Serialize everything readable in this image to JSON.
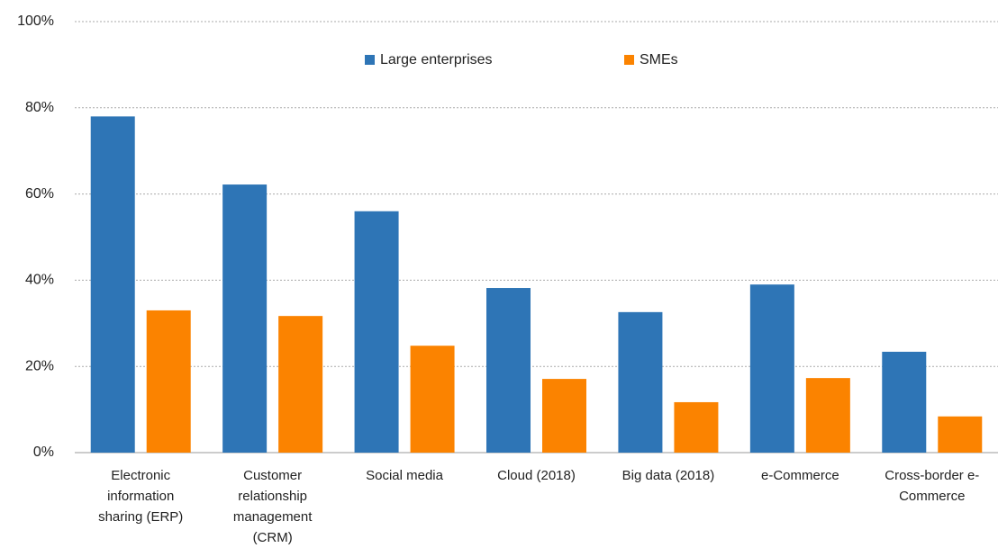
{
  "chart_data": {
    "type": "bar",
    "categories": [
      "Electronic information sharing (ERP)",
      "Customer relationship management (CRM)",
      "Social media",
      "Cloud (2018)",
      "Big data (2018)",
      "e-Commerce",
      "Cross-border e-Commerce"
    ],
    "series": [
      {
        "name": "Large enterprises",
        "color": "#2e75b6",
        "values": [
          78,
          62.2,
          56,
          38.2,
          32.6,
          39,
          23.4
        ]
      },
      {
        "name": "SMEs",
        "color": "#fb8300",
        "values": [
          33,
          31.7,
          24.8,
          17.1,
          11.7,
          17.3,
          8.4
        ]
      }
    ],
    "ylim": [
      0,
      100
    ],
    "yticks": [
      {
        "value": 0,
        "label": "0%"
      },
      {
        "value": 20,
        "label": "20%"
      },
      {
        "value": 40,
        "label": "40%"
      },
      {
        "value": 60,
        "label": "60%"
      },
      {
        "value": 80,
        "label": "80%"
      },
      {
        "value": 100,
        "label": "100%"
      }
    ],
    "grid": true,
    "legend": "top"
  }
}
